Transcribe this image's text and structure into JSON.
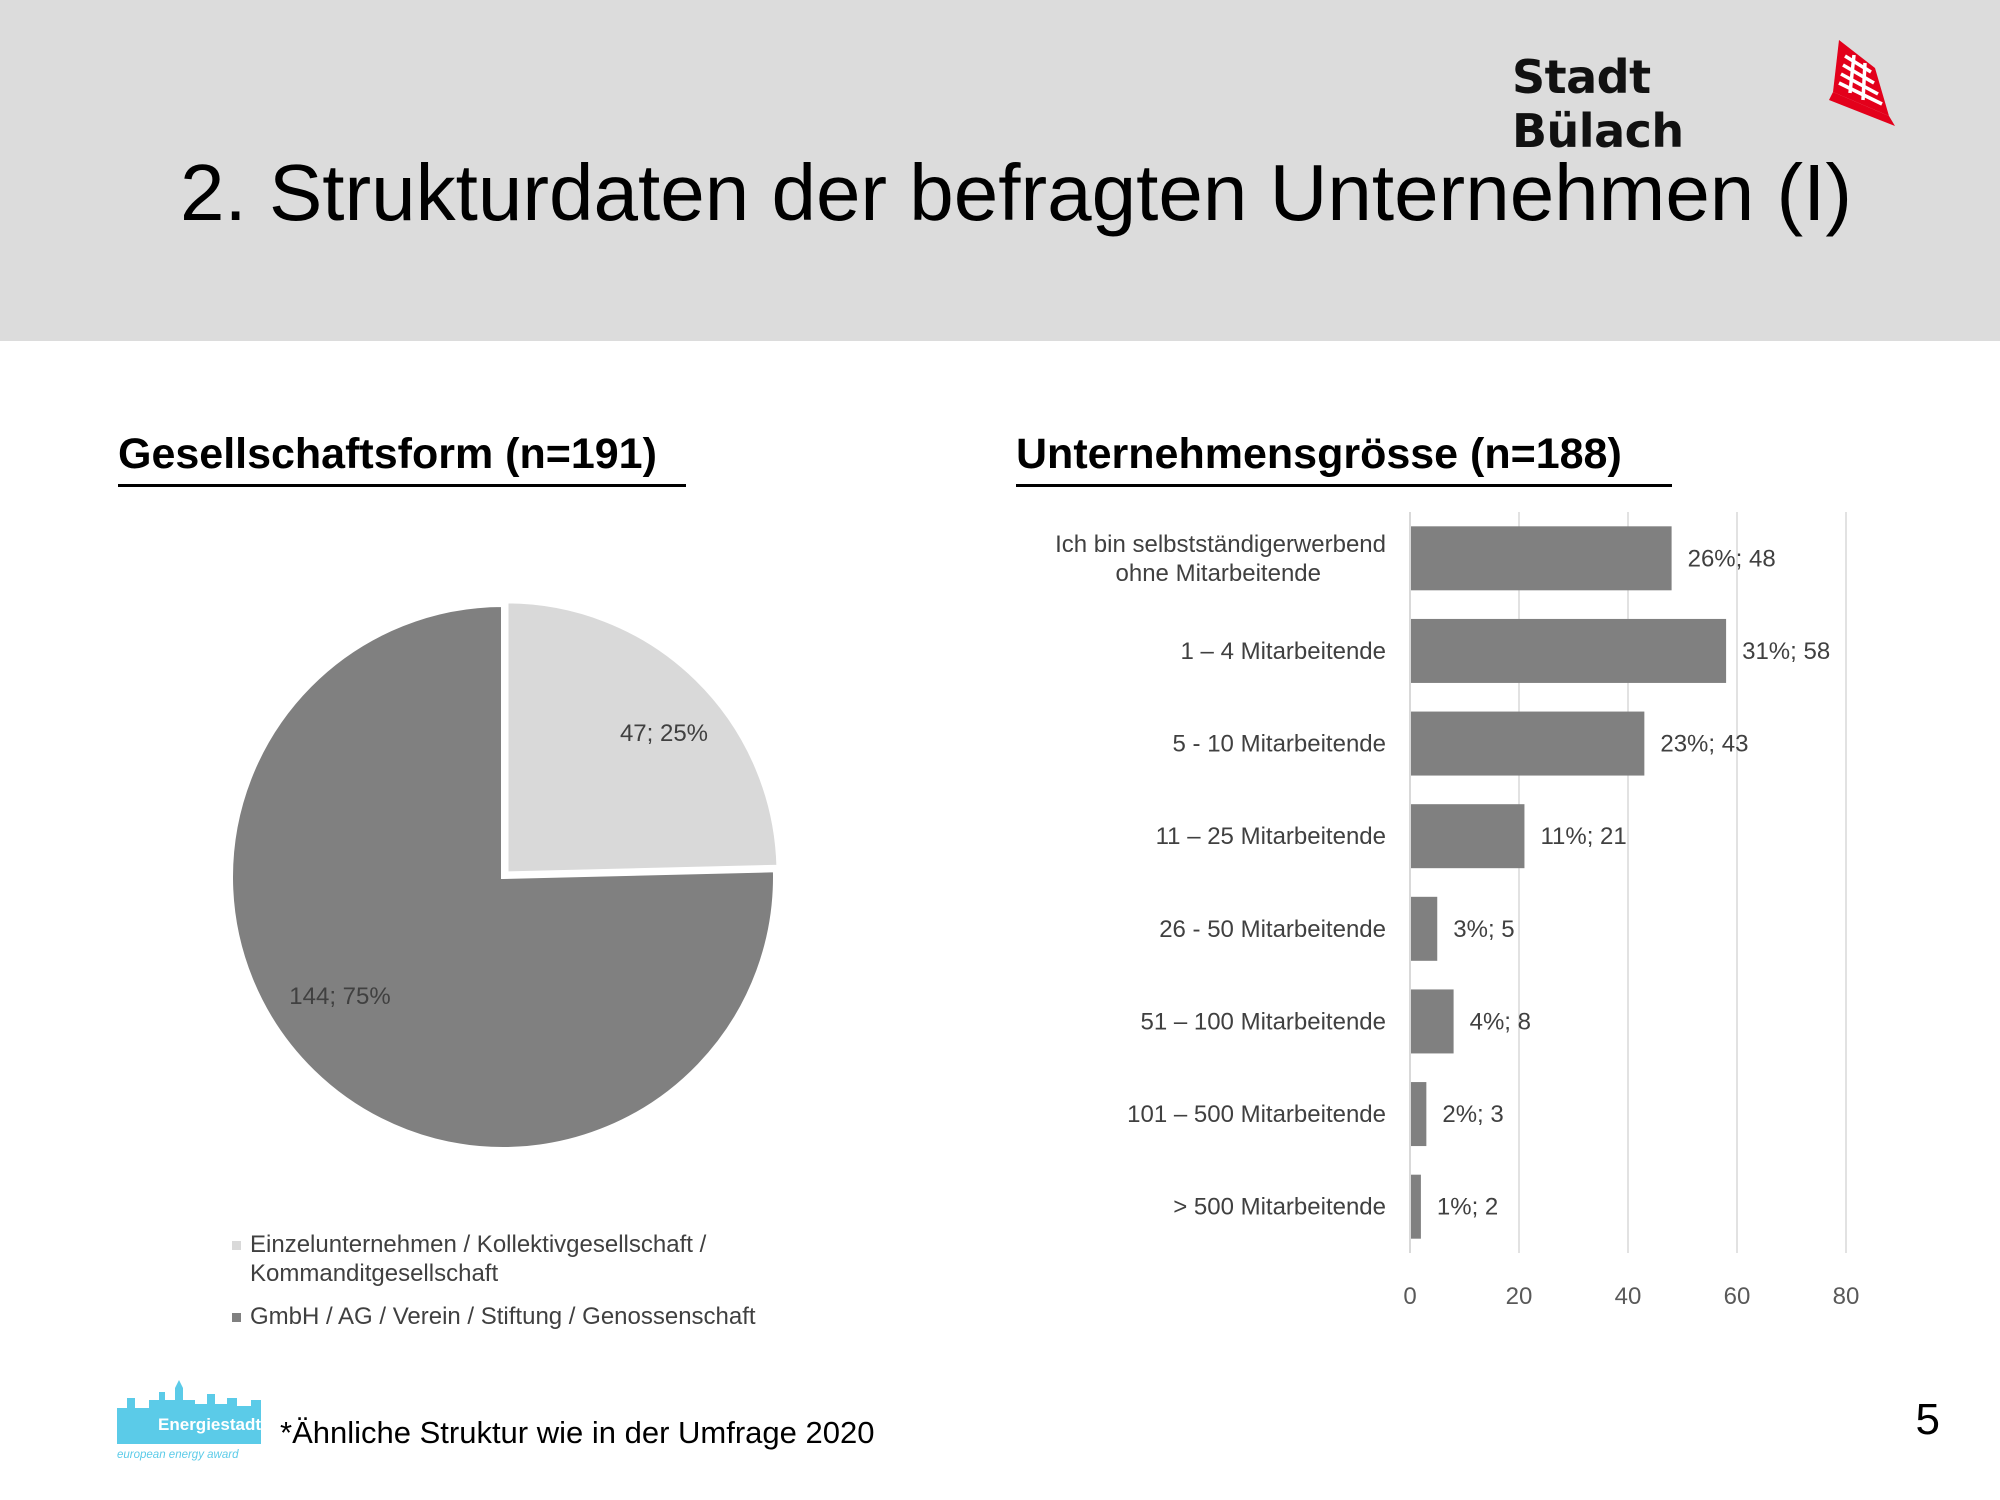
{
  "header": {
    "brand": "Stadt Bülach",
    "title": "2. Strukturdaten der befragten Unternehmen (I)"
  },
  "colors": {
    "header_bg": "#dcdcdc",
    "dark_series": "#808080",
    "light_series": "#d9d9d9",
    "crest_red": "#e3001b",
    "logo_blue": "#5bcbe8"
  },
  "chart_data": [
    {
      "type": "pie",
      "title": "Gesellschaftsform (n=191)",
      "slices": [
        {
          "label": "Einzelunternehmen / Kollektivgesellschaft / Kommanditgesellschaft",
          "value": 47,
          "percent": 25,
          "data_label": "47; 25%",
          "color": "#d9d9d9"
        },
        {
          "label": "GmbH / AG / Verein / Stiftung / Genossenschaft",
          "value": 144,
          "percent": 75,
          "data_label": "144; 75%",
          "color": "#808080"
        }
      ],
      "legend": {
        "position": "bottom",
        "lines": [
          [
            "Einzelunternehmen / Kollektivgesellschaft /",
            "Kommanditgesellschaft"
          ],
          [
            "GmbH / AG / Verein / Stiftung / Genossenschaft"
          ]
        ]
      }
    },
    {
      "type": "bar",
      "orientation": "horizontal",
      "title": "Unternehmensgrösse (n=188)",
      "categories": [
        [
          "Ich bin selbstständigerwerbend",
          "ohne Mitarbeitende"
        ],
        [
          "1 – 4 Mitarbeitende"
        ],
        [
          "5 - 10 Mitarbeitende"
        ],
        [
          "11 – 25 Mitarbeitende"
        ],
        [
          "26 - 50 Mitarbeitende"
        ],
        [
          "51 – 100 Mitarbeitende"
        ],
        [
          "101 – 500 Mitarbeitende"
        ],
        [
          "> 500 Mitarbeitende"
        ]
      ],
      "values": [
        48,
        58,
        43,
        21,
        5,
        8,
        3,
        2
      ],
      "data_labels": [
        "26%; 48",
        "31%; 58",
        "23%; 43",
        "11%; 21",
        "3%; 5",
        "4%; 8",
        "2%; 3",
        "1%; 2"
      ],
      "xlim": [
        0,
        80
      ],
      "xticks": [
        "0",
        "20",
        "40",
        "60",
        "80"
      ],
      "grid": true,
      "color": "#808080"
    }
  ],
  "footer": {
    "footnote": "*Ähnliche Struktur wie in der Umfrage 2020",
    "page_number": "5",
    "logo_name": "Energiestadt",
    "logo_subtitle": "european energy award"
  }
}
